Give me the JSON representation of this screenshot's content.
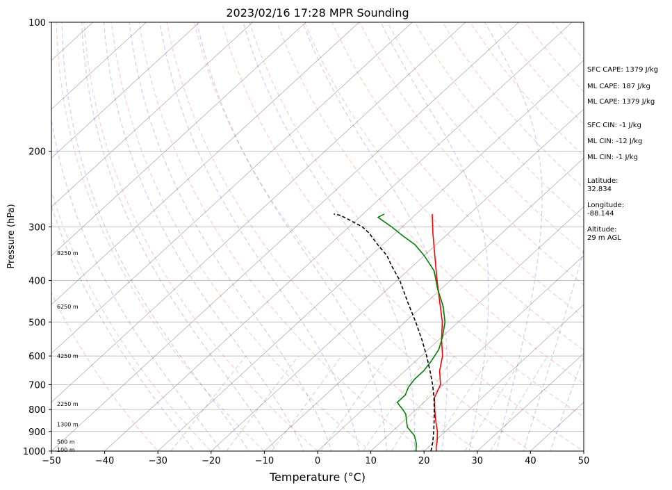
{
  "chart_data": {
    "type": "line",
    "title": "2023/02/16 17:28 MPR Sounding",
    "xlabel": "Temperature (°C)",
    "ylabel": "Pressure (hPa)",
    "xlim": [
      -50,
      50
    ],
    "ylim": [
      1000,
      100
    ],
    "y_scale": "log",
    "x_ticks": [
      "−50",
      "−40",
      "−30",
      "−20",
      "−10",
      "0",
      "10",
      "20",
      "30",
      "40",
      "50"
    ],
    "x_tick_values": [
      -50,
      -40,
      -30,
      -20,
      -10,
      0,
      10,
      20,
      30,
      40,
      50
    ],
    "y_ticks": [
      "1000",
      "900",
      "800",
      "700",
      "600",
      "500",
      "400",
      "300",
      "200",
      "100"
    ],
    "y_tick_values": [
      1000,
      900,
      800,
      700,
      600,
      500,
      400,
      300,
      200,
      100
    ],
    "height_labels": [
      {
        "text": "100 m",
        "p": 993
      },
      {
        "text": "500 m",
        "p": 950
      },
      {
        "text": "1300 m",
        "p": 866
      },
      {
        "text": "2250 m",
        "p": 776
      },
      {
        "text": "4250 m",
        "p": 600
      },
      {
        "text": "6250 m",
        "p": 460
      },
      {
        "text": "8250 m",
        "p": 345
      }
    ],
    "series": [
      {
        "key": "temperature",
        "color": "#ff0000",
        "points": [
          [
            22.3,
            1000
          ],
          [
            21.5,
            980
          ],
          [
            20.5,
            950
          ],
          [
            18.5,
            900
          ],
          [
            16,
            850
          ],
          [
            13.5,
            800
          ],
          [
            11,
            750
          ],
          [
            9.5,
            700
          ],
          [
            6.5,
            650
          ],
          [
            4,
            600
          ],
          [
            0.5,
            550
          ],
          [
            -3,
            500
          ],
          [
            -7.5,
            450
          ],
          [
            -12.5,
            400
          ],
          [
            -18,
            350
          ],
          [
            -23,
            310
          ],
          [
            -27,
            280
          ]
        ]
      },
      {
        "key": "dewpoint",
        "color": "#008000",
        "points": [
          [
            18.5,
            1000
          ],
          [
            17,
            960
          ],
          [
            15,
            920
          ],
          [
            12,
            880
          ],
          [
            10.5,
            850
          ],
          [
            9,
            820
          ],
          [
            7.5,
            800
          ],
          [
            5,
            770
          ],
          [
            5,
            740
          ],
          [
            4,
            710
          ],
          [
            3.5,
            680
          ],
          [
            3.5,
            650
          ],
          [
            3,
            620
          ],
          [
            2,
            580
          ],
          [
            0,
            540
          ],
          [
            -2.5,
            500
          ],
          [
            -6,
            460
          ],
          [
            -10.5,
            420
          ],
          [
            -15,
            380
          ],
          [
            -20,
            350
          ],
          [
            -24,
            330
          ],
          [
            -28,
            315
          ],
          [
            -32,
            300
          ],
          [
            -35,
            290
          ],
          [
            -36.5,
            285
          ],
          [
            -36,
            280
          ]
        ]
      },
      {
        "key": "parcel",
        "color": "#000000",
        "dashed": true,
        "points": [
          [
            21.3,
            1000
          ],
          [
            19.7,
            950
          ],
          [
            17.8,
            900
          ],
          [
            15.7,
            850
          ],
          [
            13.4,
            800
          ],
          [
            10.9,
            750
          ],
          [
            8,
            700
          ],
          [
            4.7,
            650
          ],
          [
            1,
            600
          ],
          [
            -3.2,
            550
          ],
          [
            -8,
            500
          ],
          [
            -13.5,
            450
          ],
          [
            -19.5,
            400
          ],
          [
            -24,
            370
          ],
          [
            -27,
            350
          ],
          [
            -31,
            330
          ],
          [
            -35,
            310
          ],
          [
            -37.5,
            300
          ],
          [
            -41,
            290
          ],
          [
            -44,
            282
          ],
          [
            -45.5,
            280
          ]
        ]
      }
    ]
  },
  "indices": {
    "sfc_cape": "SFC CAPE: 1379 J/kg",
    "ml_cape_1": "ML CAPE: 187 J/kg",
    "ml_cape_2": "ML CAPE: 1379 J/kg",
    "sfc_cin": "SFC CIN: -1 J/kg",
    "ml_cin_1": "ML CIN: -12 J/kg",
    "ml_cin_2": "ML CIN: -1 J/kg"
  },
  "location": {
    "latitude": "Latitude:\n32.834",
    "longitude": "Longitude:\n-88.144",
    "altitude": "Altitude:\n29 m AGL"
  },
  "colors": {
    "temperature": "#ff0000",
    "dewpoint": "#008000",
    "parcel": "#000000",
    "dry_adiabats": "#ff0000",
    "moist_adiabats": "#0000ff",
    "mixing_ratio": "#008000",
    "isotherms": "#808080",
    "isobars": "#808080"
  }
}
